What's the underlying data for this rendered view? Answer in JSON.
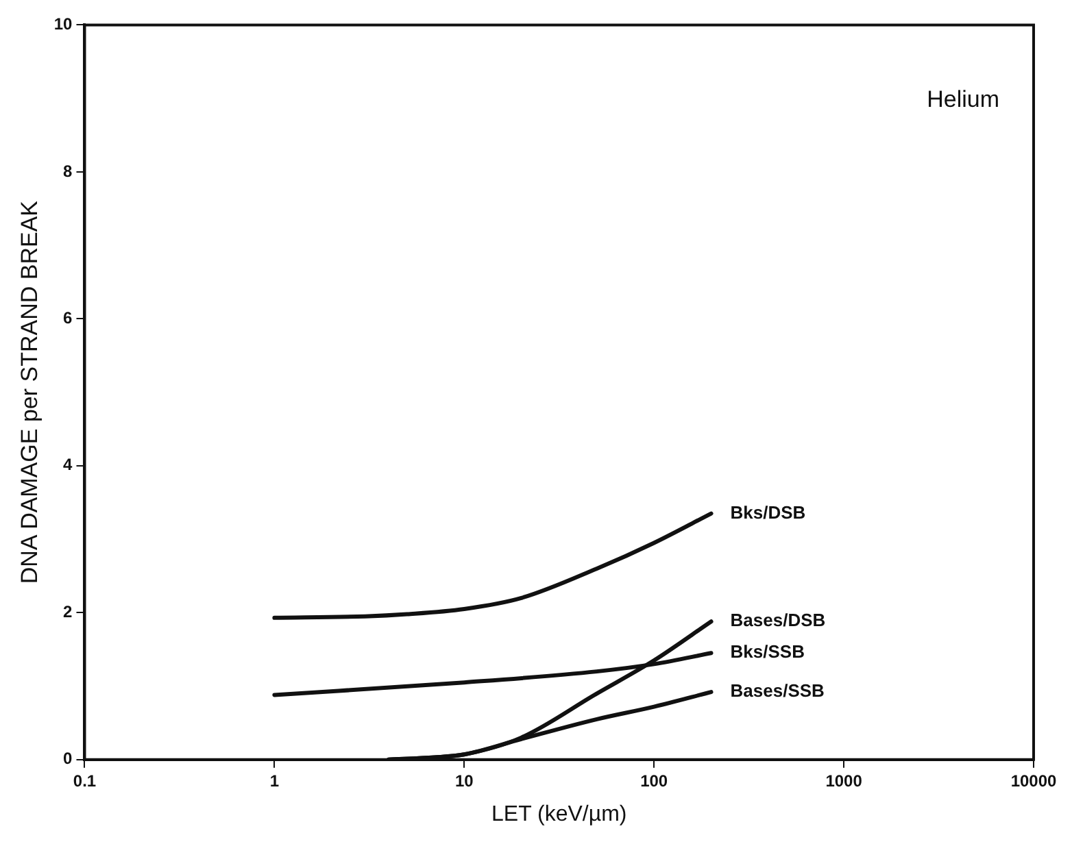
{
  "chart_data": {
    "type": "line",
    "xlabel": "LET (keV/µm)",
    "ylabel": "DNA DAMAGE per STRAND BREAK",
    "annotations": [
      "Helium"
    ],
    "log": "x",
    "xlim": [
      0.1,
      10000
    ],
    "xticks": [
      0.1,
      1,
      10,
      100,
      1000,
      10000
    ],
    "ylim": [
      0,
      10
    ],
    "yticks": [
      0,
      2,
      4,
      6,
      8,
      10
    ],
    "grid": false,
    "legend": false,
    "marker": "none",
    "line_style": "solid",
    "series": [
      {
        "name": "Bks/DSB",
        "color": "#111111",
        "x": [
          1,
          3,
          5,
          10,
          20,
          50,
          100,
          200
        ],
        "values": [
          1.93,
          1.95,
          1.98,
          2.05,
          2.2,
          2.6,
          2.95,
          3.35
        ]
      },
      {
        "name": "Bases/DSB",
        "color": "#111111",
        "x": [
          4,
          7,
          10,
          20,
          50,
          100,
          200
        ],
        "values": [
          0,
          0.03,
          0.07,
          0.3,
          0.9,
          1.35,
          1.88
        ]
      },
      {
        "name": "Bks/SSB",
        "color": "#111111",
        "x": [
          1,
          10,
          50,
          100,
          200
        ],
        "values": [
          0.88,
          1.05,
          1.2,
          1.3,
          1.45
        ]
      },
      {
        "name": "Bases/SSB",
        "color": "#111111",
        "x": [
          4,
          7,
          10,
          20,
          50,
          100,
          200
        ],
        "values": [
          0,
          0.03,
          0.07,
          0.28,
          0.55,
          0.72,
          0.92
        ]
      }
    ]
  }
}
